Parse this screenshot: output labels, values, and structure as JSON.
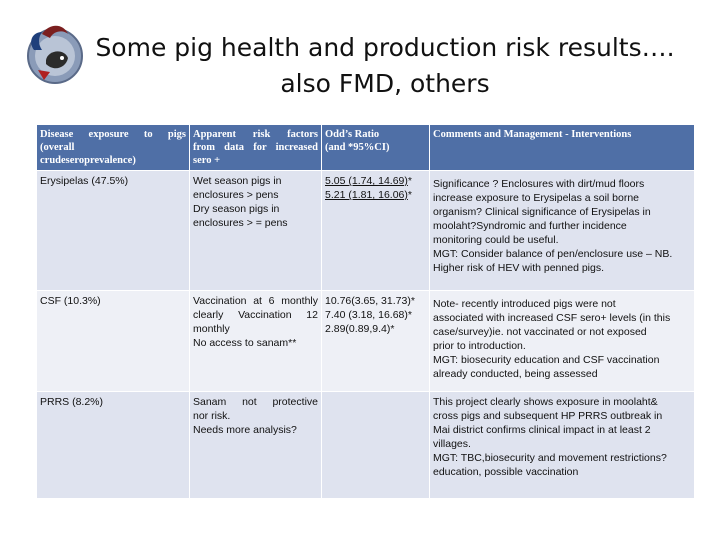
{
  "slide": {
    "title_line1": "Some pig health and production risk results….",
    "title_line2": "also FMD, others"
  },
  "logo": {
    "icon": "project-logo-icon"
  },
  "table": {
    "headers": {
      "disease": [
        "Disease exposure to pigs",
        "(overall",
        "crudeseroprevalence)"
      ],
      "factors": [
        "Apparent risk factors",
        "from data for increased",
        "sero +"
      ],
      "odds": [
        "Odd’s Ratio",
        "(and *95%CI)"
      ],
      "comments": "Comments and Management - Interventions"
    },
    "rows": [
      {
        "disease": "Erysipelas  (47.5%)",
        "factors": [
          "Wet season pigs in",
          "enclosures > pens",
          "Dry season pigs in",
          "enclosures > = pens"
        ],
        "odds": [
          {
            "value": "5.05 (1.74, 14.69)",
            "suffix": "*"
          },
          {
            "value": "5.21 (1.81, 16.06)",
            "suffix": "*"
          }
        ],
        "comments": [
          "Significance ? Enclosures with dirt/mud floors",
          "increase exposure to Erysipelas a soil borne",
          "organism? Clinical significance of Erysipelas in",
          "moolaht?Syndromic and further incidence",
          "monitoring could be useful.",
          "MGT: Consider balance of pen/enclosure use – NB.",
          "Higher risk of HEV with penned pigs."
        ]
      },
      {
        "disease": "CSF (10.3%)",
        "factors": [
          "Vaccination at 6 monthly",
          "clearly Vaccination 12",
          "monthly",
          "No access to sanam**"
        ],
        "odds": [
          "10.76(3.65, 31.73)*",
          "7.40 (3.18, 16.68)*",
          "2.89(0.89,9.4)*"
        ],
        "comments": [
          "Note- recently introduced pigs were not",
          "associated with increased CSF sero+ levels (in this",
          "case/survey)ie. not vaccinated or not exposed",
          "prior to introduction.",
          "MGT: biosecurity education and CSF vaccination",
          "already conducted, being assessed"
        ]
      },
      {
        "disease": "PRRS (8.2%)",
        "factors": [
          "Sanam not protective",
          "nor risk.",
          "Needs more analysis?"
        ],
        "comments": [
          "This project clearly shows exposure in moolaht&",
          "cross pigs and subsequent HP PRRS outbreak in",
          "Mai district confirms clinical impact in at least 2",
          "villages.",
          "MGT: TBC,biosecurity and movement restrictions?",
          "education, possible vaccination"
        ]
      }
    ]
  }
}
